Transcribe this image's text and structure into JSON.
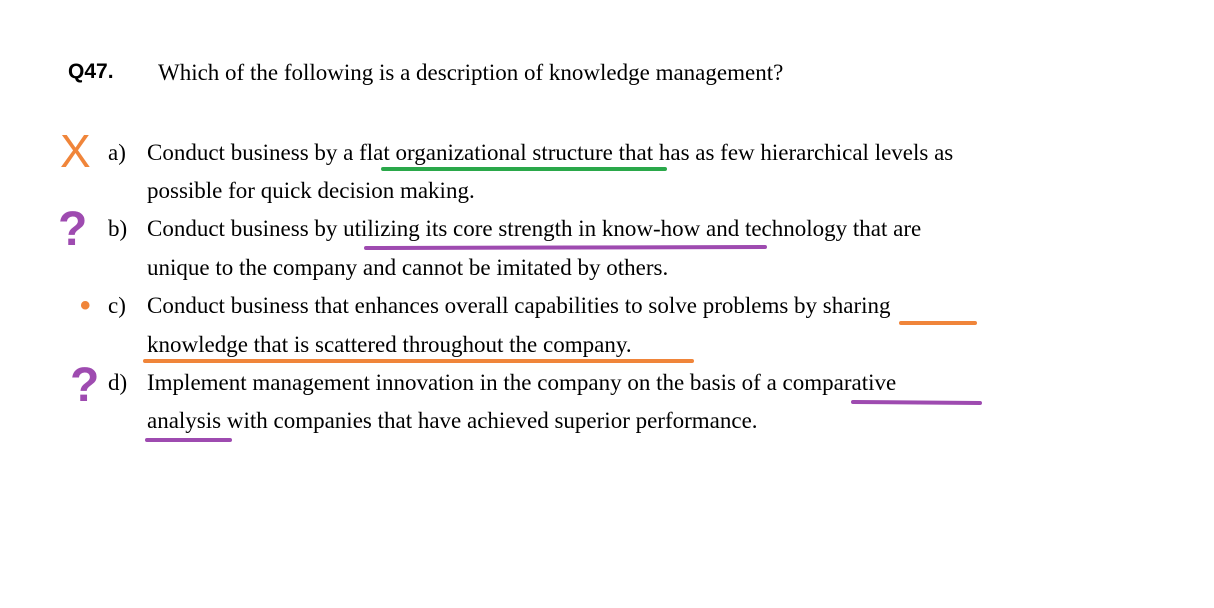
{
  "question": {
    "number": "Q47.",
    "text": "Which of the following is a description of knowledge management?"
  },
  "options": [
    {
      "letter": "a)",
      "lines": [
        [
          "Conduct business by a ",
          "flat organizational structure",
          " that has as few hierarchical levels as"
        ],
        [
          "possible for quick decision making."
        ]
      ]
    },
    {
      "letter": "b)",
      "lines": [
        [
          "Conduct business by ",
          "utilizing its core strength in know-how",
          " and technology that are"
        ],
        [
          "unique to the company and cannot be imitated by others."
        ]
      ]
    },
    {
      "letter": "c)",
      "lines": [
        [
          "Conduct business that enhances overall capabilities to solve problems by ",
          "sharing"
        ],
        [
          "knowledge that is scattered throughout the company."
        ]
      ]
    },
    {
      "letter": "d)",
      "lines": [
        [
          "Implement management innovation in the company on the basis of a ",
          "comparative"
        ],
        [
          "analysis",
          " with companies that have achieved superior performance."
        ]
      ]
    }
  ],
  "annotations": {
    "a": {
      "symbol": "X",
      "color": "#F0853A",
      "underline_color": "#2AA84A"
    },
    "b": {
      "symbol": "?",
      "color": "#9E4BB0",
      "underline_color": "#9E4BB0"
    },
    "c": {
      "symbol": "•",
      "color": "#F0853A",
      "underline_color": "#F0853A"
    },
    "d": {
      "symbol": "?",
      "color": "#9E4BB0",
      "underline_color": "#9E4BB0"
    }
  }
}
